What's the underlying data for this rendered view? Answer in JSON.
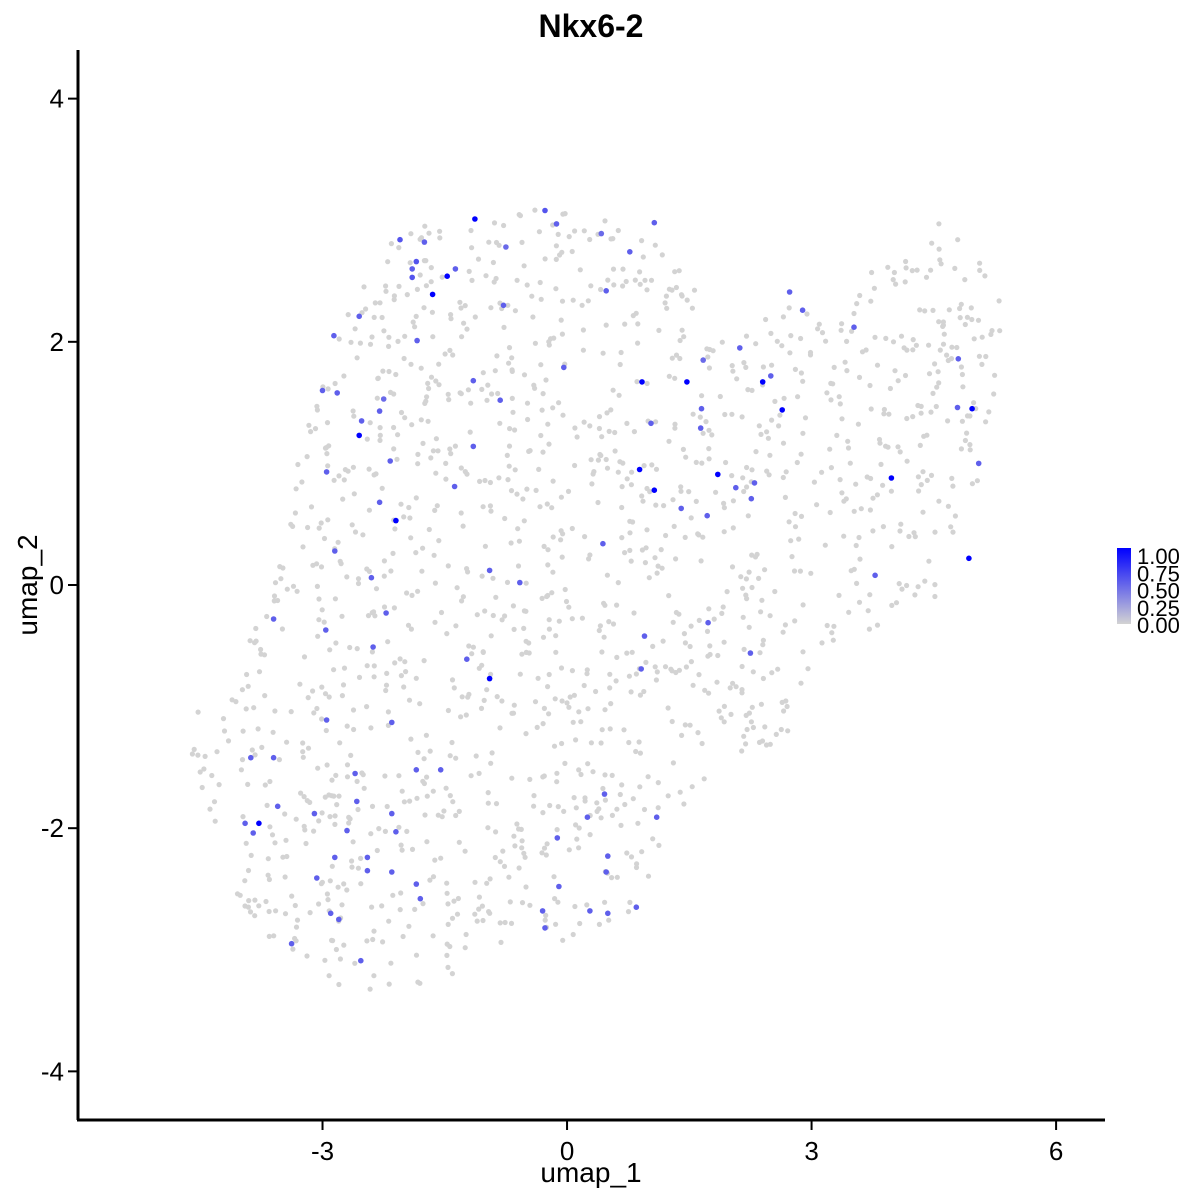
{
  "chart_data": {
    "type": "scatter",
    "title": "Nkx6-2",
    "xlabel": "umap_1",
    "ylabel": "umap_2",
    "xlim": [
      -6.0,
      6.6
    ],
    "ylim": [
      -4.4,
      4.4
    ],
    "xticks": [
      -3,
      0,
      3,
      6
    ],
    "yticks": [
      -4,
      -2,
      0,
      2,
      4
    ],
    "x_tick_labels": [
      "-3",
      "0",
      "3",
      "6"
    ],
    "y_tick_labels": [
      "-4",
      "-2",
      "0",
      "2",
      "4"
    ],
    "legend": {
      "placement": "right",
      "labels": [
        "1.00",
        "0.75",
        "0.50",
        "0.25",
        "0.00"
      ],
      "color_low": "#d3d3d3",
      "color_high": "#0000ff"
    },
    "colors": {
      "low": "#d3d3d3",
      "high": "#0000ff"
    },
    "grid": false,
    "background_point_count": 1500,
    "expressing_points": [
      {
        "x": -1.13,
        "y": 3.01,
        "v": 1.0
      },
      {
        "x": -0.27,
        "y": 3.08,
        "v": 0.6
      },
      {
        "x": -0.13,
        "y": 2.97,
        "v": 0.55
      },
      {
        "x": -2.05,
        "y": 2.84,
        "v": 0.6
      },
      {
        "x": -1.75,
        "y": 2.82,
        "v": 0.55
      },
      {
        "x": -1.85,
        "y": 2.66,
        "v": 0.6
      },
      {
        "x": -1.9,
        "y": 2.6,
        "v": 0.55
      },
      {
        "x": -1.9,
        "y": 2.53,
        "v": 0.6
      },
      {
        "x": -1.47,
        "y": 2.54,
        "v": 0.95
      },
      {
        "x": -1.65,
        "y": 2.39,
        "v": 1.0
      },
      {
        "x": -1.37,
        "y": 2.6,
        "v": 0.55
      },
      {
        "x": -0.75,
        "y": 2.78,
        "v": 0.5
      },
      {
        "x": -0.78,
        "y": 2.3,
        "v": 0.55
      },
      {
        "x": 0.42,
        "y": 2.89,
        "v": 0.5
      },
      {
        "x": 0.77,
        "y": 2.74,
        "v": 0.55
      },
      {
        "x": 1.07,
        "y": 2.98,
        "v": 0.55
      },
      {
        "x": 0.48,
        "y": 2.42,
        "v": 0.55
      },
      {
        "x": -2.55,
        "y": 2.21,
        "v": 0.55
      },
      {
        "x": -2.86,
        "y": 2.05,
        "v": 0.55
      },
      {
        "x": -1.84,
        "y": 2.01,
        "v": 0.55
      },
      {
        "x": -3.0,
        "y": 1.6,
        "v": 0.55
      },
      {
        "x": -2.82,
        "y": 1.58,
        "v": 0.55
      },
      {
        "x": -1.15,
        "y": 1.68,
        "v": 0.55
      },
      {
        "x": -0.04,
        "y": 1.79,
        "v": 0.55
      },
      {
        "x": -2.25,
        "y": 1.53,
        "v": 0.5
      },
      {
        "x": -2.3,
        "y": 1.43,
        "v": 0.55
      },
      {
        "x": -0.82,
        "y": 1.52,
        "v": 0.55
      },
      {
        "x": -2.55,
        "y": 1.23,
        "v": 1.0
      },
      {
        "x": -2.52,
        "y": 1.35,
        "v": 0.55
      },
      {
        "x": -1.15,
        "y": 1.14,
        "v": 0.55
      },
      {
        "x": -2.17,
        "y": 1.02,
        "v": 0.55
      },
      {
        "x": -2.95,
        "y": 0.93,
        "v": 0.55
      },
      {
        "x": -1.38,
        "y": 0.81,
        "v": 0.55
      },
      {
        "x": -2.3,
        "y": 0.68,
        "v": 0.55
      },
      {
        "x": -2.1,
        "y": 0.53,
        "v": 1.0
      },
      {
        "x": -2.85,
        "y": 0.28,
        "v": 0.55
      },
      {
        "x": 0.44,
        "y": 0.34,
        "v": 0.55
      },
      {
        "x": 0.92,
        "y": 1.67,
        "v": 1.0
      },
      {
        "x": 1.47,
        "y": 1.67,
        "v": 1.0
      },
      {
        "x": 2.4,
        "y": 1.67,
        "v": 1.0
      },
      {
        "x": 2.64,
        "y": 1.44,
        "v": 1.0
      },
      {
        "x": 1.03,
        "y": 1.33,
        "v": 0.55
      },
      {
        "x": 1.65,
        "y": 1.45,
        "v": 0.55
      },
      {
        "x": 1.67,
        "y": 1.85,
        "v": 0.5
      },
      {
        "x": 2.12,
        "y": 1.95,
        "v": 0.55
      },
      {
        "x": 2.5,
        "y": 1.72,
        "v": 0.55
      },
      {
        "x": 1.64,
        "y": 1.29,
        "v": 0.55
      },
      {
        "x": 0.89,
        "y": 0.95,
        "v": 1.0
      },
      {
        "x": 1.85,
        "y": 0.91,
        "v": 1.0
      },
      {
        "x": 1.07,
        "y": 0.78,
        "v": 1.0
      },
      {
        "x": 2.07,
        "y": 0.8,
        "v": 0.55
      },
      {
        "x": 1.4,
        "y": 0.63,
        "v": 0.55
      },
      {
        "x": 1.72,
        "y": 0.57,
        "v": 0.55
      },
      {
        "x": 2.3,
        "y": 0.84,
        "v": 0.55
      },
      {
        "x": 2.26,
        "y": 0.71,
        "v": 0.55
      },
      {
        "x": 2.73,
        "y": 2.41,
        "v": 0.55
      },
      {
        "x": 2.89,
        "y": 2.26,
        "v": 0.55
      },
      {
        "x": 3.52,
        "y": 2.12,
        "v": 0.55
      },
      {
        "x": 4.8,
        "y": 1.86,
        "v": 0.55
      },
      {
        "x": 4.97,
        "y": 1.45,
        "v": 1.0
      },
      {
        "x": 4.79,
        "y": 1.46,
        "v": 0.55
      },
      {
        "x": 3.98,
        "y": 0.88,
        "v": 1.0
      },
      {
        "x": 5.05,
        "y": 1.0,
        "v": 0.55
      },
      {
        "x": 4.93,
        "y": 0.22,
        "v": 1.0
      },
      {
        "x": 3.78,
        "y": 0.08,
        "v": 0.55
      },
      {
        "x": -0.95,
        "y": 0.12,
        "v": 0.55
      },
      {
        "x": -0.58,
        "y": 0.02,
        "v": 0.55
      },
      {
        "x": -2.4,
        "y": 0.06,
        "v": 0.55
      },
      {
        "x": -2.22,
        "y": -0.23,
        "v": 0.55
      },
      {
        "x": -3.6,
        "y": -0.28,
        "v": 0.55
      },
      {
        "x": -2.96,
        "y": -0.37,
        "v": 0.55
      },
      {
        "x": -2.38,
        "y": -0.51,
        "v": 0.55
      },
      {
        "x": -1.23,
        "y": -0.61,
        "v": 0.55
      },
      {
        "x": -0.95,
        "y": -0.77,
        "v": 1.0
      },
      {
        "x": 0.95,
        "y": -0.42,
        "v": 0.55
      },
      {
        "x": 1.73,
        "y": -0.31,
        "v": 0.55
      },
      {
        "x": 2.25,
        "y": -0.56,
        "v": 0.55
      },
      {
        "x": 0.91,
        "y": -0.69,
        "v": 0.55
      },
      {
        "x": -2.95,
        "y": -1.11,
        "v": 0.55
      },
      {
        "x": -2.15,
        "y": -1.13,
        "v": 0.55
      },
      {
        "x": -3.88,
        "y": -1.42,
        "v": 0.55
      },
      {
        "x": -3.6,
        "y": -1.42,
        "v": 0.55
      },
      {
        "x": -2.6,
        "y": -1.55,
        "v": 0.55
      },
      {
        "x": -1.85,
        "y": -1.52,
        "v": 0.55
      },
      {
        "x": -1.55,
        "y": -1.52,
        "v": 0.55
      },
      {
        "x": -3.78,
        "y": -1.96,
        "v": 1.0
      },
      {
        "x": -3.95,
        "y": -1.96,
        "v": 0.55
      },
      {
        "x": -3.85,
        "y": -2.04,
        "v": 0.55
      },
      {
        "x": -3.55,
        "y": -1.82,
        "v": 0.55
      },
      {
        "x": -2.58,
        "y": -1.78,
        "v": 0.55
      },
      {
        "x": -2.15,
        "y": -1.88,
        "v": 0.55
      },
      {
        "x": -3.1,
        "y": -1.88,
        "v": 0.55
      },
      {
        "x": -2.7,
        "y": -2.02,
        "v": 0.55
      },
      {
        "x": -2.1,
        "y": -2.03,
        "v": 0.55
      },
      {
        "x": 0.46,
        "y": -1.72,
        "v": 0.55
      },
      {
        "x": 0.25,
        "y": -1.91,
        "v": 0.55
      },
      {
        "x": 1.1,
        "y": -1.91,
        "v": 0.55
      },
      {
        "x": -0.12,
        "y": -2.08,
        "v": 0.55
      },
      {
        "x": -2.85,
        "y": -2.24,
        "v": 0.55
      },
      {
        "x": -2.45,
        "y": -2.24,
        "v": 0.55
      },
      {
        "x": 0.5,
        "y": -2.23,
        "v": 0.55
      },
      {
        "x": -2.15,
        "y": -2.36,
        "v": 0.55
      },
      {
        "x": -2.45,
        "y": -2.35,
        "v": 0.55
      },
      {
        "x": -3.07,
        "y": -2.41,
        "v": 0.55
      },
      {
        "x": -1.85,
        "y": -2.46,
        "v": 0.55
      },
      {
        "x": 0.48,
        "y": -2.36,
        "v": 0.55
      },
      {
        "x": -0.1,
        "y": -2.48,
        "v": 0.55
      },
      {
        "x": -1.8,
        "y": -2.58,
        "v": 0.55
      },
      {
        "x": 0.28,
        "y": -2.68,
        "v": 0.55
      },
      {
        "x": 0.5,
        "y": -2.7,
        "v": 0.55
      },
      {
        "x": 0.85,
        "y": -2.65,
        "v": 0.55
      },
      {
        "x": -0.3,
        "y": -2.68,
        "v": 0.55
      },
      {
        "x": -2.9,
        "y": -2.7,
        "v": 0.55
      },
      {
        "x": -2.8,
        "y": -2.75,
        "v": 0.55
      },
      {
        "x": -0.27,
        "y": -2.82,
        "v": 0.55
      },
      {
        "x": -3.38,
        "y": -2.95,
        "v": 0.55
      },
      {
        "x": -2.53,
        "y": -3.09,
        "v": 0.55
      }
    ]
  }
}
